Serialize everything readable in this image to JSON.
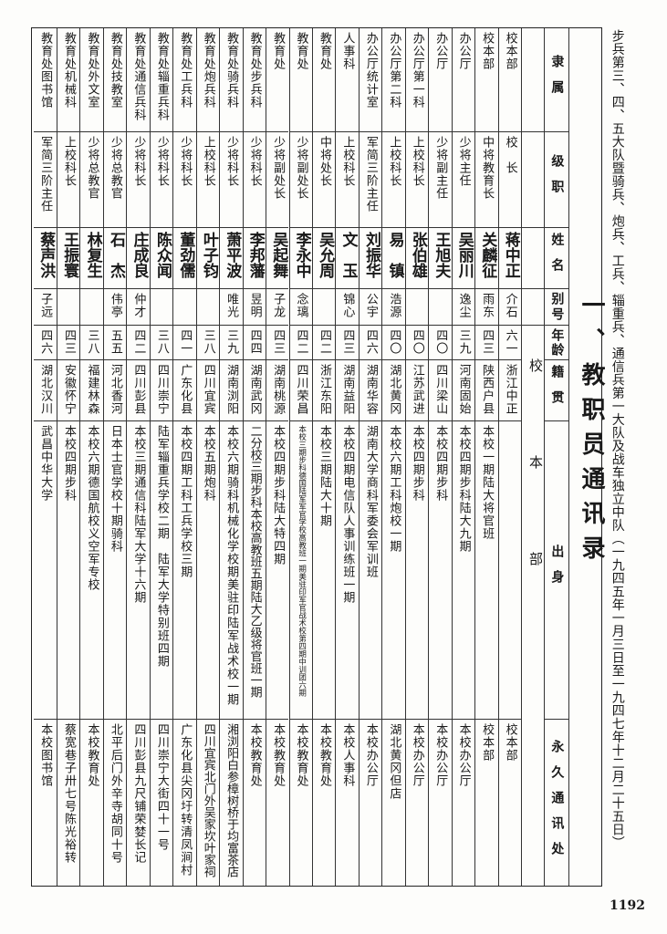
{
  "title": "步兵第三、四、五大队暨骑兵、炮兵、工兵、辎重兵、通信兵第一大队及战车独立中队（一九四五年一月三日至一九四七年十二月二十五日）",
  "section_heading": "一、教职员通讯录",
  "group_label": [
    "校",
    "本",
    "部"
  ],
  "headers": [
    "隶属",
    "级职",
    "姓名",
    "别号",
    "年龄",
    "籍贯",
    "出身",
    "永久通讯处"
  ],
  "rows": [
    {
      "dept": "校本部",
      "rank": "校　长",
      "name": "蒋中正",
      "alias": "介石",
      "age": "六一",
      "native": "浙江中正",
      "origin": "",
      "address": "校本部"
    },
    {
      "dept": "校本部",
      "rank": "中将教育长",
      "name": "关麟征",
      "alias": "雨东",
      "age": "四三",
      "native": "陕西户县",
      "origin": "本校一期陆大将官班",
      "address": "校本部"
    },
    {
      "dept": "办公厅",
      "rank": "少将主任",
      "name": "吴丽川",
      "alias": "逸尘",
      "age": "三九",
      "native": "河南固始",
      "origin": "本校四期步科陆大九期",
      "address": "本校办公厅"
    },
    {
      "dept": "办公厅",
      "rank": "少将副主任",
      "name": "王旭夫",
      "alias": "",
      "age": "四〇",
      "native": "四川梁山",
      "origin": "本校四期步科",
      "address": "本校办公厅"
    },
    {
      "dept": "办公厅第一科",
      "rank": "上校科长",
      "name": "张伯雄",
      "alias": "",
      "age": "四〇",
      "native": "江苏武进",
      "origin": "本校四期步科",
      "address": "本校办公厅"
    },
    {
      "dept": "办公厅第二科",
      "rank": "上校科长",
      "name": "易　镇",
      "alias": "浩源",
      "age": "四〇",
      "native": "湖北黄冈",
      "origin": "本校六期工科炮校一期",
      "address": "湖北黄冈但店"
    },
    {
      "dept": "办公厅统计室",
      "rank": "军简三阶主任",
      "name": "刘振华",
      "alias": "公宇",
      "age": "四六",
      "native": "湖南华容",
      "origin": "湖南大学商科军委会军训班",
      "address": "本校办公厅"
    },
    {
      "dept": "人事科",
      "rank": "上校科长",
      "name": "文　玉",
      "alias": "锦心",
      "age": "四三",
      "native": "湖南益阳",
      "origin": "本校四期电信队人事训练班一期",
      "address": "本校人事科"
    },
    {
      "dept": "教育处",
      "rank": "中将处长",
      "name": "吴允周",
      "alias": "",
      "age": "四二",
      "native": "浙江东阳",
      "origin": "本校三期陆大十期",
      "address": "本校教育处"
    },
    {
      "dept": "教育处",
      "rank": "少将副处长",
      "name": "李永中",
      "alias": "念璃",
      "age": "四二",
      "native": "四川荣昌",
      "origin": "本校三期步科德国陆军军官学校高教班一期美驻印军官战术校第四期中训团六期",
      "address": "本校教育处"
    },
    {
      "dept": "教育处",
      "rank": "少将副处长",
      "name": "吴起舞",
      "alias": "子龙",
      "age": "四三",
      "native": "湖南桃源",
      "origin": "本校四期步科陆大特四期",
      "address": "本校教育处"
    },
    {
      "dept": "教育处步兵科",
      "rank": "少将科长",
      "name": "李邦藩",
      "alias": "昱明",
      "age": "四四",
      "native": "湖南武冈",
      "origin": "二分校三期步科本校高教班五期陆大乙级将官班一期",
      "address": "本校教育处"
    },
    {
      "dept": "教育处骑兵科",
      "rank": "少将科长",
      "name": "萧平波",
      "alias": "唯光",
      "age": "三九",
      "native": "湖南浏阳",
      "origin": "本校六期骑科机械化学校期美驻印陆军战术校一期",
      "address": "湘浏阳白参樟树桥于均富茶店"
    },
    {
      "dept": "教育处炮兵科",
      "rank": "上校科长",
      "name": "叶子钧",
      "alias": "",
      "age": "三八",
      "native": "四川宜宾",
      "origin": "本校五期炮科",
      "address": "四川宜宾北门外吴家坎叶家祠"
    },
    {
      "dept": "教育处工兵科",
      "rank": "少将科长",
      "name": "董劲儒",
      "alias": "",
      "age": "四一",
      "native": "广东化县",
      "origin": "本校四期工科工兵学校三期",
      "address": "广东化县尖冈圩转清凤涧村"
    },
    {
      "dept": "教育处辎重兵科",
      "rank": "少将科长",
      "name": "陈众闻",
      "alias": "",
      "age": "三八",
      "native": "四川崇宁",
      "origin": "陆军辎重兵学校二期　陆军大学特别班四期",
      "address": "四川崇宁大街四十一号"
    },
    {
      "dept": "教育处通信兵科",
      "rank": "少将科长",
      "name": "庄成良",
      "alias": "仲才",
      "age": "四二",
      "native": "四川彭县",
      "origin": "本校三期通信科陆军大学十六期",
      "address": "四川彭县九尺铺荣婪长记"
    },
    {
      "dept": "教育处技教室",
      "rank": "少将总教官",
      "name": "石　杰",
      "alias": "伟亭",
      "age": "五五",
      "native": "河北香河",
      "origin": "日本士官学校十期骑科",
      "address": "北平后门外辛寺胡同十号"
    },
    {
      "dept": "教育处外文室",
      "rank": "少将总教官",
      "name": "林复生",
      "alias": "",
      "age": "三八",
      "native": "福建林森",
      "origin": "本校六期德国航校义空军专校",
      "address": "本校教育处"
    },
    {
      "dept": "教育处机械科",
      "rank": "上校科长",
      "name": "王振寰",
      "alias": "",
      "age": "四三",
      "native": "安徽怀宁",
      "origin": "本校四期步科",
      "address": "蔡宽巷子卅七号陈光裕转"
    },
    {
      "dept": "教育处图书馆",
      "rank": "军简三阶主任",
      "name": "蔡声洪",
      "alias": "子远",
      "age": "四六",
      "native": "湖北汉川",
      "origin": "武昌中华大学",
      "address": "本校图书馆"
    }
  ],
  "page_number": "1192"
}
